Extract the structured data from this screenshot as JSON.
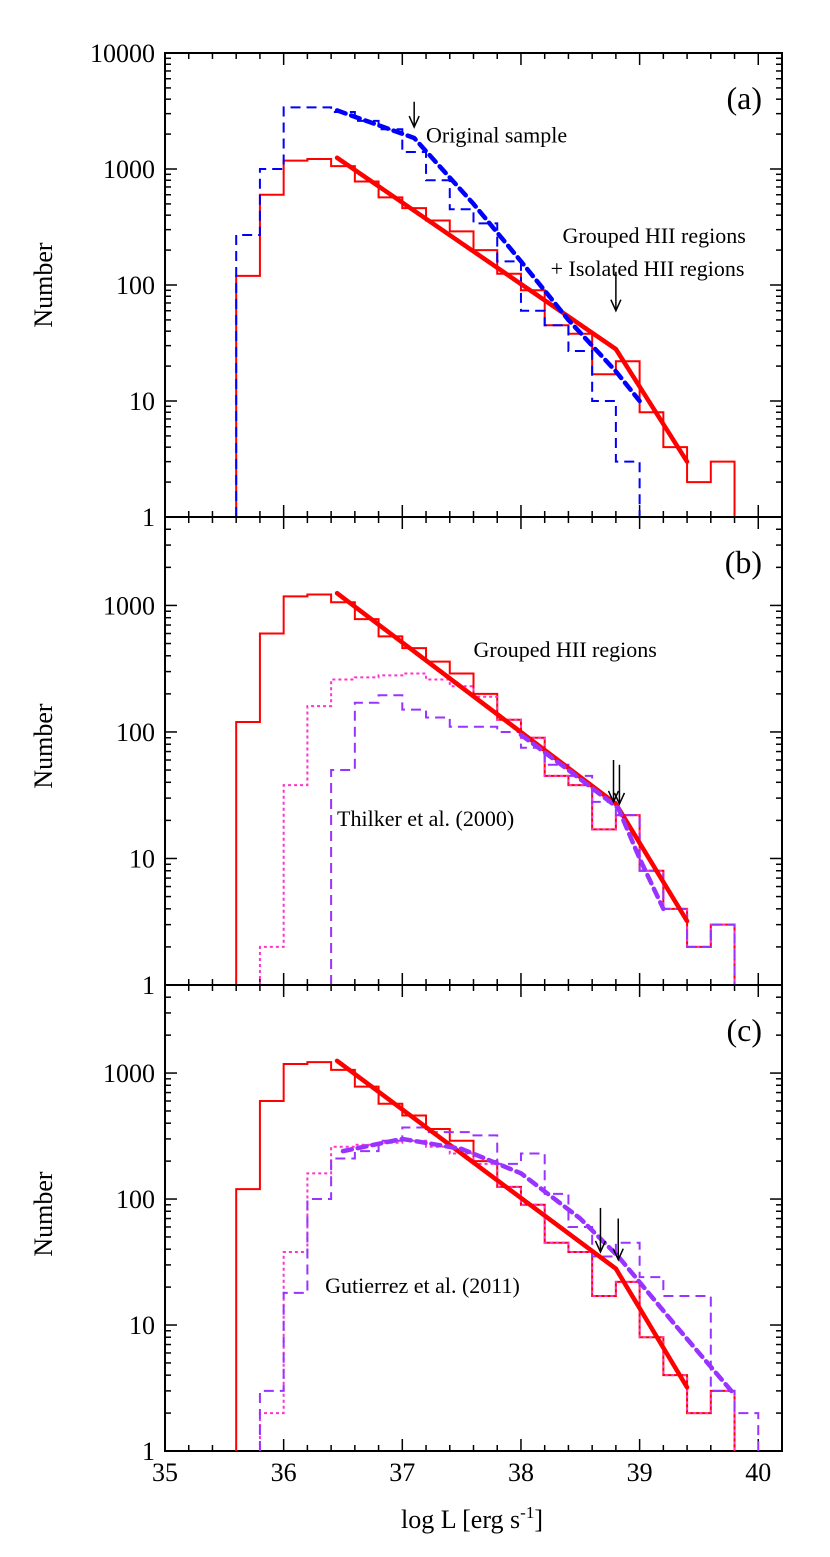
{
  "figure": {
    "xlabel": "log L [erg s",
    "xlabel_sup": "-1",
    "xlabel_end": "]",
    "ylabel": "Number",
    "x_ticks": [
      "35",
      "36",
      "37",
      "38",
      "39",
      "40"
    ]
  },
  "colors": {
    "red": "#ff0000",
    "blue": "#0000ff",
    "violet": "#9933ff",
    "magenta": "#ff33cc",
    "axes": "#000000"
  },
  "chart_data": [
    {
      "type": "line",
      "panel_label": "(a)",
      "ylog": true,
      "xlim": [
        35,
        40.2
      ],
      "ylim": [
        1,
        10000
      ],
      "y_ticks": [
        "1",
        "10",
        "100",
        "1000",
        "10000"
      ],
      "histograms": [
        {
          "color": "red",
          "dash": "solid",
          "edges": [
            35.6,
            35.8,
            36.0,
            36.2,
            36.4,
            36.6,
            36.8,
            37.0,
            37.2,
            37.4,
            37.6,
            37.8,
            38.0,
            38.2,
            38.4,
            38.6,
            38.8,
            39.0,
            39.2,
            39.4,
            39.6,
            39.8
          ],
          "counts": [
            120,
            600,
            1180,
            1220,
            1060,
            780,
            570,
            460,
            360,
            290,
            200,
            125,
            90,
            45,
            38,
            17,
            22,
            8,
            4,
            2,
            3
          ]
        },
        {
          "color": "blue",
          "dash": "dashed",
          "edges": [
            35.6,
            35.8,
            36.0,
            36.2,
            36.4,
            36.6,
            36.8,
            37.0,
            37.2,
            37.4,
            37.6,
            37.8,
            38.0,
            38.2,
            38.4,
            38.6,
            38.8,
            39.0
          ],
          "counts": [
            270,
            1000,
            3400,
            3400,
            3100,
            2600,
            2200,
            1400,
            800,
            450,
            340,
            160,
            60,
            45,
            27,
            10,
            3
          ]
        }
      ],
      "fits": [
        {
          "color": "red",
          "dash": "solid",
          "x": [
            36.45,
            38.8,
            39.4
          ],
          "y": [
            1250,
            28,
            3
          ]
        },
        {
          "color": "blue",
          "dash": "dashed",
          "x": [
            36.45,
            37.1,
            37.6,
            38.0,
            38.4,
            38.8,
            39.0
          ],
          "y": [
            3200,
            1850,
            500,
            160,
            50,
            18,
            10
          ]
        }
      ],
      "arrows": [
        {
          "x": 37.1,
          "y_top": 3800,
          "y_bottom": 2300
        },
        {
          "x": 38.8,
          "y_top": 130,
          "y_bottom": 60
        }
      ],
      "annotations": [
        {
          "text": "Original sample",
          "x": 37.2,
          "y": 1700
        },
        {
          "text": "Grouped HII regions",
          "x": 38.35,
          "y": 230
        },
        {
          "text": "+ Isolated HII regions",
          "x": 38.25,
          "y": 120
        }
      ]
    },
    {
      "type": "line",
      "panel_label": "(b)",
      "ylog": true,
      "xlim": [
        35,
        40.2
      ],
      "ylim": [
        1,
        5000
      ],
      "y_ticks": [
        "1",
        "10",
        "100",
        "1000"
      ],
      "histograms": [
        {
          "color": "red",
          "dash": "solid",
          "edges": [
            35.6,
            35.8,
            36.0,
            36.2,
            36.4,
            36.6,
            36.8,
            37.0,
            37.2,
            37.4,
            37.6,
            37.8,
            38.0,
            38.2,
            38.4,
            38.6,
            38.8,
            39.0,
            39.2,
            39.4,
            39.6,
            39.8
          ],
          "counts": [
            120,
            600,
            1180,
            1220,
            1060,
            780,
            570,
            460,
            360,
            290,
            200,
            125,
            90,
            45,
            38,
            17,
            22,
            8,
            4,
            2,
            3
          ]
        },
        {
          "color": "magenta",
          "dash": "dotted",
          "edges": [
            35.8,
            36.0,
            36.2,
            36.4,
            36.6,
            36.8,
            37.0,
            37.2,
            37.4,
            37.6,
            37.8,
            38.0,
            38.2,
            38.4,
            38.6,
            38.8,
            39.0,
            39.2,
            39.4,
            39.6,
            39.8
          ],
          "counts": [
            2,
            38,
            160,
            260,
            270,
            280,
            290,
            260,
            230,
            190,
            125,
            90,
            45,
            38,
            17,
            22,
            8,
            4,
            2,
            3
          ]
        },
        {
          "color": "violet",
          "dash": "dashed",
          "edges": [
            36.4,
            36.6,
            36.8,
            37.0,
            37.2,
            37.4,
            37.6,
            37.8,
            38.0,
            38.2,
            38.4,
            38.6,
            38.8,
            39.0,
            39.2,
            39.4,
            39.6,
            39.8
          ],
          "counts": [
            50,
            170,
            195,
            150,
            130,
            110,
            110,
            100,
            75,
            55,
            45,
            28,
            22,
            8,
            4,
            2,
            3
          ]
        }
      ],
      "fits": [
        {
          "color": "red",
          "dash": "solid",
          "x": [
            36.45,
            38.8,
            39.4
          ],
          "y": [
            1250,
            27,
            3.2
          ]
        },
        {
          "color": "violet",
          "dash": "dashed",
          "x": [
            38.0,
            38.4,
            38.82,
            39.0,
            39.2
          ],
          "y": [
            95,
            50,
            25,
            10,
            4
          ]
        }
      ],
      "arrows": [
        {
          "x": 38.78,
          "y_top": 60,
          "y_bottom": 28
        },
        {
          "x": 38.83,
          "y_top": 55,
          "y_bottom": 27
        }
      ],
      "annotations": [
        {
          "text": "Grouped HII regions",
          "x": 37.6,
          "y": 390
        },
        {
          "text": "Thilker et al. (2000)",
          "x": 36.45,
          "y": 18
        }
      ]
    },
    {
      "type": "line",
      "panel_label": "(c)",
      "ylog": true,
      "xlim": [
        35,
        40.2
      ],
      "ylim": [
        1,
        5000
      ],
      "y_ticks": [
        "1",
        "10",
        "100",
        "1000"
      ],
      "histograms": [
        {
          "color": "red",
          "dash": "solid",
          "edges": [
            35.6,
            35.8,
            36.0,
            36.2,
            36.4,
            36.6,
            36.8,
            37.0,
            37.2,
            37.4,
            37.6,
            37.8,
            38.0,
            38.2,
            38.4,
            38.6,
            38.8,
            39.0,
            39.2,
            39.4,
            39.6,
            39.8
          ],
          "counts": [
            120,
            600,
            1180,
            1220,
            1060,
            780,
            570,
            460,
            360,
            290,
            200,
            125,
            90,
            45,
            38,
            17,
            22,
            8,
            4,
            2,
            3
          ]
        },
        {
          "color": "magenta",
          "dash": "dotted",
          "edges": [
            35.8,
            36.0,
            36.2,
            36.4,
            36.6,
            36.8,
            37.0,
            37.2,
            37.4,
            37.6,
            37.8,
            38.0,
            38.2,
            38.4,
            38.6,
            38.8,
            39.0,
            39.2,
            39.4,
            39.6,
            39.8
          ],
          "counts": [
            2,
            38,
            160,
            260,
            270,
            280,
            290,
            260,
            230,
            190,
            125,
            90,
            45,
            38,
            17,
            22,
            8,
            4,
            2,
            3
          ]
        },
        {
          "color": "violet",
          "dash": "dashed",
          "edges": [
            35.8,
            36.0,
            36.2,
            36.4,
            36.6,
            36.8,
            37.0,
            37.2,
            37.4,
            37.6,
            37.8,
            38.0,
            38.2,
            38.4,
            38.6,
            38.8,
            39.0,
            39.2,
            39.4,
            39.6,
            39.8,
            40.0
          ],
          "counts": [
            3,
            18,
            100,
            210,
            240,
            290,
            370,
            340,
            340,
            320,
            190,
            230,
            110,
            60,
            35,
            45,
            24,
            17,
            17,
            3,
            2
          ]
        }
      ],
      "fits": [
        {
          "color": "red",
          "dash": "solid",
          "x": [
            36.45,
            38.8,
            39.4
          ],
          "y": [
            1250,
            28,
            3.2
          ]
        },
        {
          "color": "violet",
          "dash": "dashed",
          "x": [
            36.5,
            37.0,
            37.5,
            38.0,
            38.5,
            38.82,
            39.3,
            39.8
          ],
          "y": [
            240,
            300,
            250,
            160,
            70,
            35,
            10,
            2.8
          ]
        }
      ],
      "arrows": [
        {
          "x": 38.67,
          "y_top": 85,
          "y_bottom": 38
        },
        {
          "x": 38.82,
          "y_top": 70,
          "y_bottom": 33
        }
      ],
      "annotations": [
        {
          "text": "Gutierrez et al. (2011)",
          "x": 36.35,
          "y": 18
        }
      ]
    }
  ]
}
